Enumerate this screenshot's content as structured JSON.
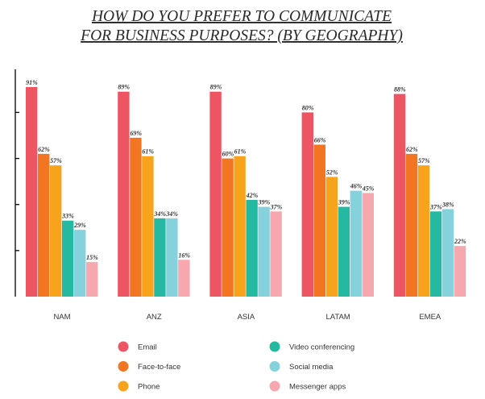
{
  "chart_data": {
    "type": "bar",
    "title": [
      "HOW DO YOU PREFER TO COMMUNICATE",
      "FOR BUSINESS PURPOSES? (BY GEOGRAPHY)"
    ],
    "xlabel": "",
    "ylabel": "",
    "ylim": [
      0,
      100
    ],
    "grid": false,
    "legend_position": "bottom",
    "categories": [
      "NAM",
      "ANZ",
      "ASIA",
      "LATAM",
      "EMEA"
    ],
    "series": [
      {
        "name": "Email",
        "color": "#ee5562",
        "values": [
          91,
          89,
          89,
          80,
          88
        ]
      },
      {
        "name": "Face-to-face",
        "color": "#f27522",
        "values": [
          62,
          69,
          60,
          66,
          62
        ]
      },
      {
        "name": "Phone",
        "color": "#f8a31c",
        "values": [
          57,
          61,
          61,
          52,
          57
        ]
      },
      {
        "name": "Video conferencing",
        "color": "#26b9a2",
        "values": [
          33,
          34,
          42,
          39,
          37
        ]
      },
      {
        "name": "Social media",
        "color": "#85d1dc",
        "values": [
          29,
          34,
          39,
          46,
          38
        ]
      },
      {
        "name": "Messenger apps",
        "color": "#f6a8ae",
        "values": [
          15,
          16,
          37,
          45,
          22
        ]
      }
    ]
  }
}
